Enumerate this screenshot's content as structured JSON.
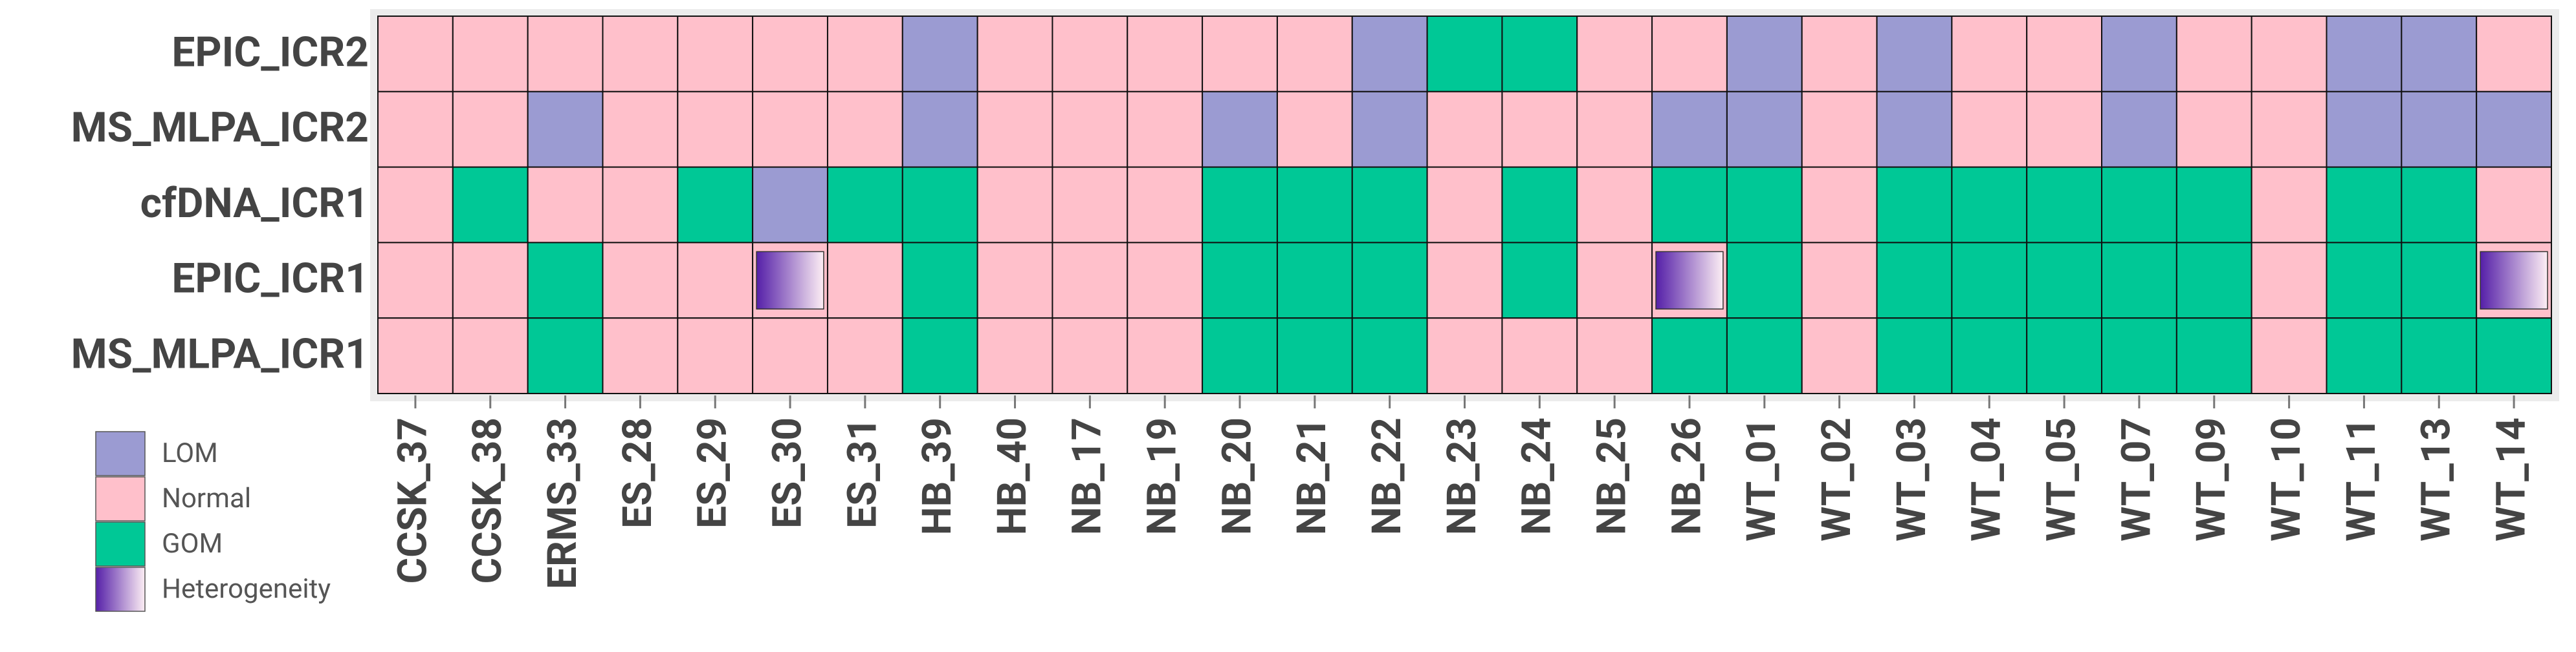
{
  "heatmap": {
    "rows": [
      "EPIC_ICR2",
      "MS_MLPA_ICR2",
      "cfDNA_ICR1",
      "EPIC_ICR1",
      "MS_MLPA_ICR1"
    ],
    "columns": [
      "CCSK_37",
      "CCSK_38",
      "ERMS_33",
      "ES_28",
      "ES_29",
      "ES_30",
      "ES_31",
      "HB_39",
      "HB_40",
      "NB_17",
      "NB_19",
      "NB_20",
      "NB_21",
      "NB_22",
      "NB_23",
      "NB_24",
      "NB_25",
      "NB_26",
      "WT_01",
      "WT_02",
      "WT_03",
      "WT_04",
      "WT_05",
      "WT_07",
      "WT_09",
      "WT_10",
      "WT_11",
      "WT_13",
      "WT_14"
    ],
    "legend": [
      {
        "name": "LOM",
        "color": "#9b9bd2"
      },
      {
        "name": "Normal",
        "color": "#ffc0cb"
      },
      {
        "name": "GOM",
        "color": "#00c896"
      },
      {
        "name": "Heterogeneity",
        "color": [
          "#5520a8",
          "#fdeef4"
        ]
      }
    ],
    "cells": [
      [
        "Normal",
        "Normal",
        "Normal",
        "Normal",
        "Normal",
        "Normal",
        "Normal",
        "LOM",
        "Normal",
        "Normal",
        "Normal",
        "Normal",
        "Normal",
        "LOM",
        "GOM",
        "GOM",
        "Normal",
        "Normal",
        "LOM",
        "Normal",
        "LOM",
        "Normal",
        "Normal",
        "LOM",
        "Normal",
        "Normal",
        "LOM",
        "LOM",
        "Normal"
      ],
      [
        "Normal",
        "Normal",
        "LOM",
        "Normal",
        "Normal",
        "Normal",
        "Normal",
        "LOM",
        "Normal",
        "Normal",
        "Normal",
        "LOM",
        "Normal",
        "LOM",
        "Normal",
        "Normal",
        "Normal",
        "LOM",
        "LOM",
        "Normal",
        "LOM",
        "Normal",
        "Normal",
        "LOM",
        "Normal",
        "Normal",
        "LOM",
        "LOM",
        "LOM"
      ],
      [
        "Normal",
        "GOM",
        "Normal",
        "Normal",
        "GOM",
        "LOM",
        "GOM",
        "GOM",
        "Normal",
        "Normal",
        "Normal",
        "GOM",
        "GOM",
        "GOM",
        "Normal",
        "GOM",
        "Normal",
        "GOM",
        "GOM",
        "Normal",
        "GOM",
        "GOM",
        "GOM",
        "GOM",
        "GOM",
        "Normal",
        "GOM",
        "GOM",
        "Normal"
      ],
      [
        "Normal",
        "Normal",
        "GOM",
        "Normal",
        "Normal",
        "Heterogeneity",
        "Normal",
        "GOM",
        "Normal",
        "Normal",
        "Normal",
        "GOM",
        "GOM",
        "GOM",
        "Normal",
        "GOM",
        "Normal",
        "Heterogeneity",
        "GOM",
        "Normal",
        "GOM",
        "GOM",
        "GOM",
        "GOM",
        "GOM",
        "Normal",
        "GOM",
        "GOM",
        "Heterogeneity"
      ],
      [
        "Normal",
        "Normal",
        "GOM",
        "Normal",
        "Normal",
        "Normal",
        "Normal",
        "GOM",
        "Normal",
        "Normal",
        "Normal",
        "GOM",
        "GOM",
        "GOM",
        "Normal",
        "Normal",
        "Normal",
        "GOM",
        "GOM",
        "Normal",
        "GOM",
        "GOM",
        "GOM",
        "GOM",
        "GOM",
        "Normal",
        "GOM",
        "GOM",
        "GOM"
      ]
    ]
  }
}
